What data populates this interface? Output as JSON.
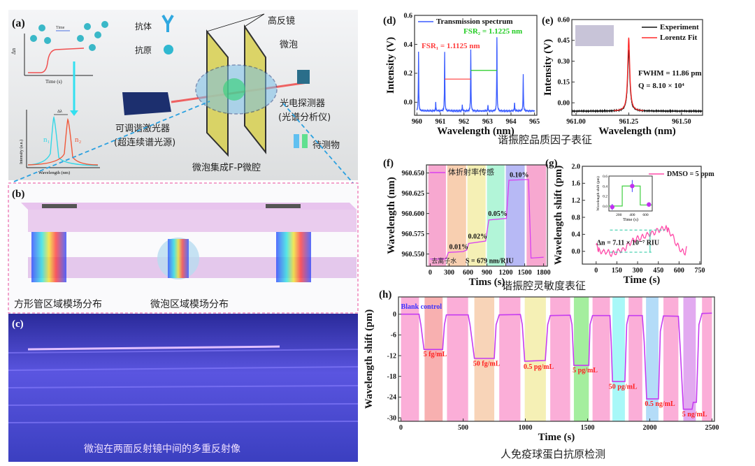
{
  "panel_a": {
    "label": "(a)",
    "time_arrow": "Time",
    "dn_axis": "Δn",
    "time_axis": "Time (s)",
    "antibody": "抗体",
    "antigen": "抗原",
    "mirror": "高反镜",
    "microbubble": "微泡",
    "detector": "光电探测器",
    "detector_sub": "(光谱分析仪)",
    "laser": "可调谐激光器",
    "laser_sub": "(超连续谱光源)",
    "analyte": "待测物",
    "cavity": "微泡集成F-P微腔",
    "spec_ylabel": "Intensity (a.u.)",
    "spec_xlabel": "Wavelength (nm)",
    "dl": "Δλ",
    "n1": "n₁",
    "n2": "n₂",
    "colors": {
      "n1": "#33d6e6",
      "n2": "#f0583a",
      "dashed": "#2aa0e0"
    }
  },
  "panel_b": {
    "label": "(b)",
    "left_caption": "方形管区域模场分布",
    "right_caption": "微泡区域模场分布"
  },
  "panel_c": {
    "label": "(c)",
    "caption": "微泡在两面反射镜中间的多重反射像"
  },
  "captions": {
    "de": "谐振腔品质因子表征",
    "fg": "谐振腔灵敏度表征",
    "h": "人免疫球蛋白抗原检测"
  },
  "chart_data": [
    {
      "id": "d",
      "label": "(d)",
      "type": "line",
      "xlabel": "Wavelength (nm)",
      "ylabel": "Intensity (V)",
      "xlim": [
        959.9,
        965.1
      ],
      "ylim": [
        -0.09,
        0.6
      ],
      "xticks": [
        960,
        961,
        962,
        963,
        964,
        965
      ],
      "yticks": [
        0.0,
        0.2,
        0.4,
        0.6
      ],
      "ytick_labels": [
        "0.0",
        "0.2",
        "0.4",
        "0.6"
      ],
      "series": [
        {
          "name": "Transmission spectrum",
          "color": "#3a5cff",
          "baseline": -0.06,
          "peaks": [
            [
              960.07,
              0.35
            ],
            [
              960.8,
              0.0
            ],
            [
              961.18,
              0.35
            ],
            [
              961.93,
              -0.02
            ],
            [
              962.29,
              0.36
            ],
            [
              963.02,
              -0.02
            ],
            [
              963.4,
              0.45
            ],
            [
              964.15,
              0.0
            ],
            [
              964.52,
              0.19
            ]
          ]
        }
      ],
      "annotations": [
        {
          "text": "FSR₁ = 1.1125 nm",
          "color": "#ff3b3b",
          "x0": 961.18,
          "x1": 962.29,
          "y": 0.16
        },
        {
          "text": "FSR₂ = 1.1225 nm",
          "color": "#22cc22",
          "x0": 962.29,
          "x1": 963.4,
          "y": 0.22
        }
      ],
      "legend": "top-left"
    },
    {
      "id": "e",
      "label": "(e)",
      "type": "line",
      "xlabel": "Wavelength (nm)",
      "ylabel": "Intensity (V)",
      "xlim": [
        960.98,
        961.6
      ],
      "ylim": [
        -0.09,
        0.6
      ],
      "xticks": [
        961.0,
        961.25,
        961.5
      ],
      "xtick_labels": [
        "961.00",
        "961.25",
        "961.50"
      ],
      "yticks": [
        0.0,
        0.15,
        0.3,
        0.45,
        0.6
      ],
      "ytick_labels": [
        "0.00",
        "0.15",
        "0.30",
        "0.45",
        "0.60"
      ],
      "series": [
        {
          "name": "Experiment",
          "color": "#111111",
          "center": 961.25,
          "peak": 0.38,
          "fwhm": 0.012,
          "baseline": -0.06
        },
        {
          "name": "Lorentz Fit",
          "color": "#ff2a2a",
          "center": 961.25,
          "peak": 0.47,
          "fwhm": 0.01186,
          "baseline": -0.06,
          "range": [
            961.18,
            961.32
          ]
        }
      ],
      "annotations": [
        "FWHM = 11.86 pm",
        "Q =  8.10 × 10⁴"
      ],
      "legend": "top-right"
    },
    {
      "id": "f",
      "label": "(f)",
      "type": "line",
      "xlabel": "Tims (s)",
      "ylabel": "Wavelength (nm)",
      "xlim": [
        -60,
        1860
      ],
      "ylim": [
        960.535,
        960.66
      ],
      "xticks": [
        0,
        300,
        600,
        900,
        1200,
        1500,
        1800
      ],
      "yticks": [
        960.55,
        960.575,
        960.6,
        960.625,
        960.65
      ],
      "ytick_labels": [
        "960.550",
        "960.575",
        "960.600",
        "960.625",
        "960.650"
      ],
      "bands": [
        [
          -30,
          250,
          "#f7a8d0"
        ],
        [
          270,
          570,
          "#f8cfb0"
        ],
        [
          590,
          880,
          "#f5f0b5"
        ],
        [
          900,
          1180,
          "#b2f5d8"
        ],
        [
          1200,
          1500,
          "#b7b9f5"
        ],
        [
          1530,
          1840,
          "#f7a8d0"
        ]
      ],
      "series": [
        {
          "name": "体折射率传感",
          "color": "#d840f0",
          "points": [
            [
              0,
              960.544
            ],
            [
              250,
              960.544
            ],
            [
              290,
              960.552
            ],
            [
              520,
              960.553
            ],
            [
              580,
              960.555
            ],
            [
              610,
              960.563
            ],
            [
              880,
              960.566
            ],
            [
              930,
              960.592
            ],
            [
              1210,
              960.594
            ],
            [
              1250,
              960.641
            ],
            [
              1560,
              960.642
            ],
            [
              1600,
              960.545
            ],
            [
              1800,
              960.546
            ]
          ]
        }
      ],
      "annotations": [
        {
          "text": "去离子水",
          "x": 20,
          "y": 960.539
        },
        {
          "text": "0.01%",
          "x": 300,
          "y": 960.556
        },
        {
          "text": "0.02%",
          "x": 600,
          "y": 960.569
        },
        {
          "text": "0.05%",
          "x": 920,
          "y": 960.597
        },
        {
          "text": "0.10%",
          "x": 1260,
          "y": 960.645
        },
        {
          "text": "S = 679 nm/RIU",
          "x": 560,
          "y": 960.539
        }
      ],
      "legend": "top-left"
    },
    {
      "id": "g",
      "label": "(g)",
      "type": "line",
      "xlabel": "Time (s)",
      "ylabel": "Wavelength shift (pm)",
      "xlim": [
        -100,
        760
      ],
      "ylim": [
        -0.3,
        2.0
      ],
      "xticks": [
        0,
        150,
        300,
        450,
        600,
        750
      ],
      "yticks": [
        0.0,
        0.4,
        0.8,
        1.2,
        1.6,
        2.0
      ],
      "ytick_labels": [
        "0.0",
        "0.4",
        "0.8",
        "1.2",
        "1.6",
        "2.0"
      ],
      "series": [
        {
          "name": "DMSO = 5 ppm",
          "color": "#ff4aa8",
          "points": [
            [
              0,
              0.15
            ],
            [
              20,
              0.02
            ],
            [
              50,
              -0.02
            ],
            [
              80,
              0.0
            ],
            [
              110,
              -0.06
            ],
            [
              140,
              -0.03
            ],
            [
              170,
              0.02
            ],
            [
              200,
              0.03
            ],
            [
              230,
              0.15
            ],
            [
              260,
              0.24
            ],
            [
              290,
              0.3
            ],
            [
              320,
              0.32
            ],
            [
              350,
              0.36
            ],
            [
              380,
              0.4
            ],
            [
              410,
              0.42
            ],
            [
              440,
              0.48
            ],
            [
              470,
              0.52
            ],
            [
              500,
              0.56
            ],
            [
              520,
              0.5
            ],
            [
              550,
              0.38
            ],
            [
              580,
              0.18
            ],
            [
              610,
              0.05
            ],
            [
              640,
              -0.05
            ],
            [
              660,
              0.1
            ]
          ]
        }
      ],
      "annotations": [
        "Δn = 7.11 × 10⁻⁷ RIU"
      ],
      "inset": {
        "xlabel": "Time (s)",
        "ylabel": "Wavelength shift (pm)",
        "xlim": [
          50,
          700
        ],
        "ylim": [
          -0.1,
          0.6
        ],
        "xticks": [
          200,
          400,
          600
        ],
        "yticks": [
          0.0,
          0.2,
          0.4,
          0.6
        ],
        "ytick_labels": [
          "0.0",
          "0.2",
          "0.4",
          "0.6"
        ],
        "points": [
          [
            100,
            -0.02,
            0.06
          ],
          [
            400,
            0.4,
            0.12
          ],
          [
            650,
            0.03,
            0.04
          ]
        ],
        "step": [
          [
            50,
            0.0
          ],
          [
            250,
            0.0
          ],
          [
            250,
            0.4
          ],
          [
            520,
            0.4
          ],
          [
            520,
            0.02
          ],
          [
            700,
            0.02
          ]
        ]
      },
      "legend": "top-right"
    },
    {
      "id": "h",
      "label": "(h)",
      "type": "line",
      "xlabel": "Time (s)",
      "ylabel": "Wavelength shift (pm)",
      "xlim": [
        -20,
        2520
      ],
      "ylim": [
        -31,
        5
      ],
      "xticks": [
        0,
        500,
        1000,
        1500,
        2000,
        2500
      ],
      "yticks": [
        0,
        -6,
        -12,
        -18,
        -24,
        -30
      ],
      "bands": [
        [
          0,
          145,
          "#fbaed8"
        ],
        [
          190,
          335,
          "#f8b0b0"
        ],
        [
          370,
          540,
          "#fbaed8"
        ],
        [
          590,
          750,
          "#f8d4b8"
        ],
        [
          790,
          960,
          "#fbaed8"
        ],
        [
          995,
          1165,
          "#f5f0b5"
        ],
        [
          1200,
          1360,
          "#fbaed8"
        ],
        [
          1390,
          1510,
          "#a4ee9e"
        ],
        [
          1540,
          1680,
          "#fbaed8"
        ],
        [
          1700,
          1800,
          "#a8f8f8"
        ],
        [
          1830,
          1940,
          "#fbaed8"
        ],
        [
          1970,
          2070,
          "#b4dcf8"
        ],
        [
          2110,
          2230,
          "#fbaed8"
        ],
        [
          2270,
          2370,
          "#e2aaf0"
        ],
        [
          2420,
          2500,
          "#fbaed8"
        ]
      ],
      "series": [
        {
          "name": "Blank control",
          "color": "#c63cf0",
          "points": [
            [
              0,
              0
            ],
            [
              145,
              0
            ],
            [
              160,
              -3
            ],
            [
              185,
              -10.2
            ],
            [
              335,
              -10.2
            ],
            [
              350,
              -3
            ],
            [
              365,
              -0.2
            ],
            [
              540,
              -0.2
            ],
            [
              555,
              -3
            ],
            [
              590,
              -12.8
            ],
            [
              750,
              -12.8
            ],
            [
              765,
              -3
            ],
            [
              790,
              -0.2
            ],
            [
              960,
              -0.1
            ],
            [
              975,
              -3
            ],
            [
              995,
              -13.6
            ],
            [
              1160,
              -13.4
            ],
            [
              1180,
              -3
            ],
            [
              1200,
              -0.4
            ],
            [
              1360,
              -0.3
            ],
            [
              1375,
              -3
            ],
            [
              1390,
              -14.8
            ],
            [
              1510,
              -14.8
            ],
            [
              1520,
              -3
            ],
            [
              1540,
              -0.4
            ],
            [
              1680,
              -0.4
            ],
            [
              1690,
              -8
            ],
            [
              1700,
              -19.5
            ],
            [
              1800,
              -19.5
            ],
            [
              1815,
              -3
            ],
            [
              1830,
              -0.4
            ],
            [
              1940,
              -0.4
            ],
            [
              1955,
              -8
            ],
            [
              1975,
              -24.5
            ],
            [
              2070,
              -24.5
            ],
            [
              2085,
              -5
            ],
            [
              2110,
              -0.5
            ],
            [
              2230,
              -0.6
            ],
            [
              2245,
              -10
            ],
            [
              2270,
              -27.5
            ],
            [
              2340,
              -27.5
            ],
            [
              2350,
              -25.5
            ],
            [
              2375,
              -25.5
            ],
            [
              2395,
              -3
            ],
            [
              2420,
              0.2
            ],
            [
              2500,
              0.3
            ]
          ]
        }
      ],
      "annotations": [
        {
          "text": "Blank control",
          "x": 0,
          "y": 1.6,
          "color": "#3b32ff"
        },
        {
          "text": "5 fg/mL",
          "x": 180,
          "y": -12.2,
          "color": "#ff2020"
        },
        {
          "text": "50 fg/mL",
          "x": 580,
          "y": -14.9,
          "color": "#ff2020"
        },
        {
          "text": "0.5 pg/mL",
          "x": 985,
          "y": -15.8,
          "color": "#ff2020"
        },
        {
          "text": "5 pg/mL",
          "x": 1380,
          "y": -16.8,
          "color": "#ff2020"
        },
        {
          "text": "50 pg/mL",
          "x": 1670,
          "y": -21.6,
          "color": "#ff2020"
        },
        {
          "text": "0.5 ng/mL",
          "x": 1960,
          "y": -26.6,
          "color": "#ff2020"
        },
        {
          "text": "5 ng/mL",
          "x": 2260,
          "y": -29.6,
          "color": "#ff2020"
        }
      ]
    }
  ]
}
